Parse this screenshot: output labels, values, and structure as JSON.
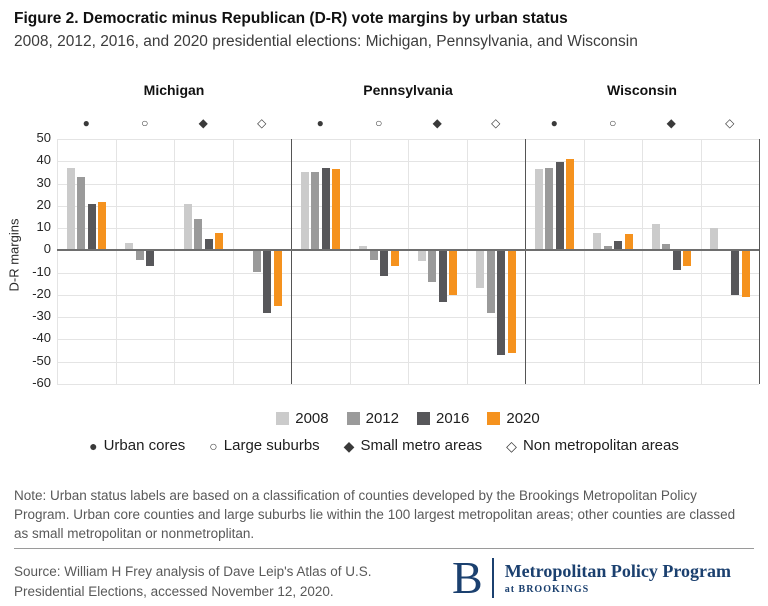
{
  "header": {
    "title": "Figure 2. Democratic minus Republican (D-R) vote margins by urban status",
    "subtitle": "2008, 2012, 2016, and 2020 presidential elections: Michigan, Pennsylvania, and Wisconsin"
  },
  "chart_data": {
    "type": "bar",
    "title": "Figure 2. Democratic minus Republican (D-R) vote margins by urban status",
    "ylabel": "D-R margins",
    "ylim": [
      -60,
      50
    ],
    "ytick_interval": 10,
    "grid": true,
    "series_years": [
      "2008",
      "2012",
      "2016",
      "2020"
    ],
    "series_colors": [
      "#CBCBCB",
      "#9A9A9A",
      "#57575A",
      "#F5921E"
    ],
    "status_categories": [
      {
        "label": "Urban cores",
        "marker": "●"
      },
      {
        "label": "Large suburbs",
        "marker": "○"
      },
      {
        "label": "Small metro areas",
        "marker": "◆"
      },
      {
        "label": "Non metropolitan areas",
        "marker": "◇"
      }
    ],
    "panels": [
      {
        "state": "Michigan",
        "groups": [
          {
            "status": "Urban cores",
            "values": [
              37,
              33,
              21,
              21.5
            ]
          },
          {
            "status": "Large suburbs",
            "values": [
              3.5,
              -4.5,
              -7,
              -0.5
            ]
          },
          {
            "status": "Small metro areas",
            "values": [
              21,
              14,
              5,
              8
            ]
          },
          {
            "status": "Non metropolitan areas",
            "values": [
              -0.5,
              -9.5,
              -28,
              -25
            ]
          }
        ]
      },
      {
        "state": "Pennsylvania",
        "groups": [
          {
            "status": "Urban cores",
            "values": [
              35,
              35,
              37,
              36.5
            ]
          },
          {
            "status": "Large suburbs",
            "values": [
              2,
              -4.5,
              -11.5,
              -7
            ]
          },
          {
            "status": "Small metro areas",
            "values": [
              -5,
              -14,
              -23,
              -20
            ]
          },
          {
            "status": "Non metropolitan areas",
            "values": [
              -17,
              -28,
              -47,
              -46
            ]
          }
        ]
      },
      {
        "state": "Wisconsin",
        "groups": [
          {
            "status": "Urban cores",
            "values": [
              36.5,
              37,
              39.5,
              41
            ]
          },
          {
            "status": "Large suburbs",
            "values": [
              8,
              2,
              4,
              7.5
            ]
          },
          {
            "status": "Small metro areas",
            "values": [
              12,
              3,
              -9,
              -7
            ]
          },
          {
            "status": "Non metropolitan areas",
            "values": [
              10,
              -0.5,
              -20,
              -21
            ]
          }
        ]
      }
    ]
  },
  "note": "Note: Urban status labels are based on a classification of counties developed by the Brookings Metropolitan Policy Program. Urban core counties and large suburbs lie within the 100 largest metropolitan areas; other counties are classed as small metropolitan or nonmetroplitan.",
  "source": {
    "line1": "Source: William H Frey analysis of Dave Leip's Atlas of U.S.",
    "line2": "Presidential Elections, accessed November 12, 2020."
  },
  "logo": {
    "letter": "B",
    "program": "Metropolitan Policy Program",
    "sub": "at BROOKINGS",
    "color": "#1b406f"
  }
}
